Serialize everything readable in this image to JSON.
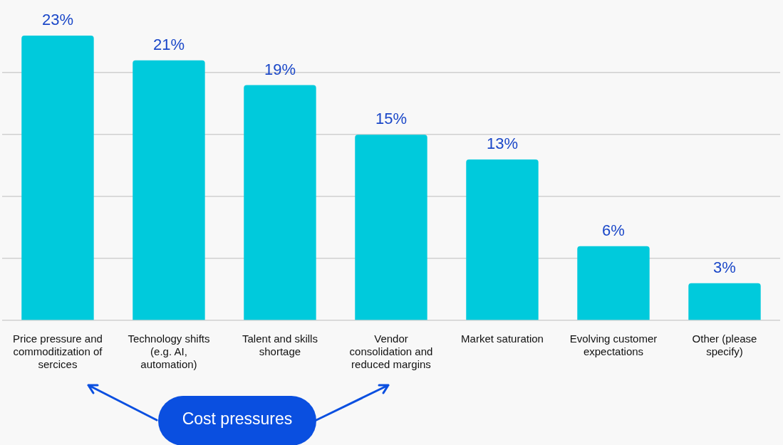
{
  "chart_data": {
    "type": "bar",
    "categories": [
      "Price pressure and commoditization of sercices",
      "Technology shifts (e.g. AI, automation)",
      "Talent and skills shortage",
      "Vendor consolidation and reduced margins",
      "Market saturation",
      "Evolving customer expectations",
      "Other (please specify)"
    ],
    "values": [
      23,
      21,
      19,
      15,
      13,
      6,
      3
    ],
    "value_labels": [
      "23%",
      "21%",
      "19%",
      "15%",
      "13%",
      "6%",
      "3%"
    ],
    "color": "#00cadc",
    "yticks": [
      {
        "value": 0,
        "label": null
      },
      {
        "value": 5,
        "label": null
      },
      {
        "value": 10,
        "label": null
      },
      {
        "value": 15,
        "label": null
      },
      {
        "value": 20,
        "label": null
      }
    ],
    "grid": "y",
    "tick_labels": "x",
    "legend": false,
    "annotations": [
      "Cost pressures"
    ]
  }
}
